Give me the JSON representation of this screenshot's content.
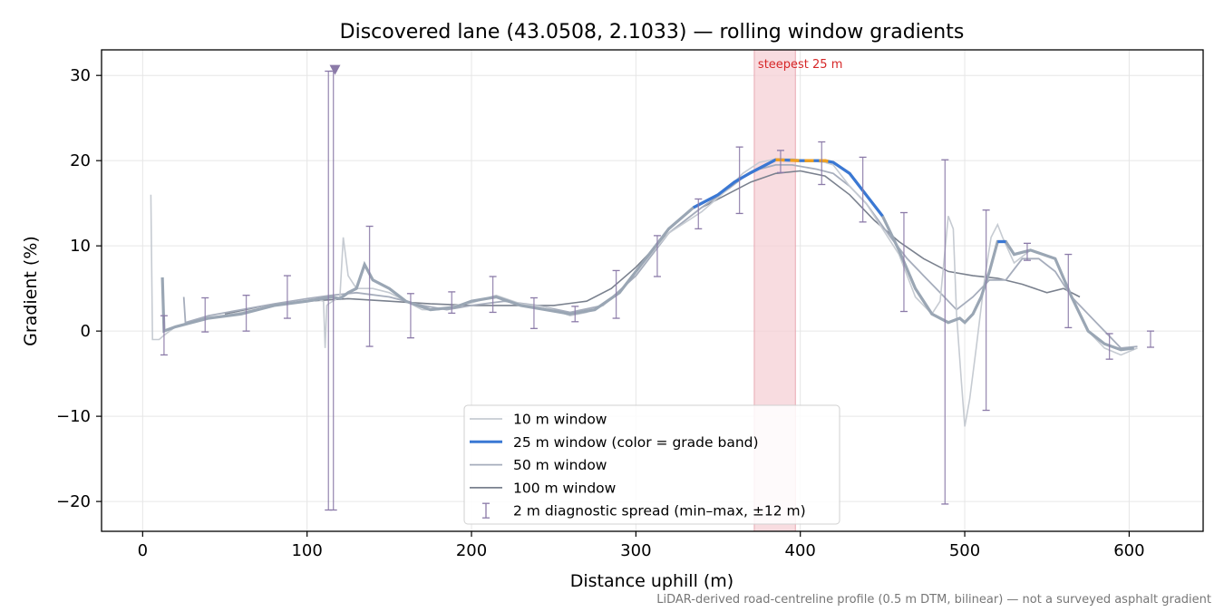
{
  "chart_data": {
    "type": "line",
    "title": "Discovered lane (43.0508, 2.1033) — rolling window gradients",
    "xlabel": "Distance uphill (m)",
    "ylabel": "Gradient (%)",
    "xlim": [
      -25,
      645
    ],
    "ylim": [
      -23.5,
      33
    ],
    "xticks": [
      0,
      100,
      200,
      300,
      400,
      500,
      600
    ],
    "yticks": [
      -20,
      -10,
      0,
      10,
      20,
      30
    ],
    "ytick_labels": [
      "−20",
      "−10",
      "0",
      "10",
      "20",
      "30"
    ],
    "grid": true,
    "legend_position": "bottom-center",
    "footnote": "LiDAR-derived road-centreline profile (0.5 m DTM, bilinear) — not a surveyed asphalt gradient",
    "steepest_segment": {
      "label": "steepest 25 m",
      "x_start": 372,
      "x_end": 397,
      "color": "#f5d0d5",
      "label_color": "#d62728"
    },
    "marker": {
      "x": 117,
      "y": 30.7,
      "shape": "triangle-down",
      "color": "#8b7aa8"
    },
    "series": [
      {
        "name": "10 m window",
        "color": "#c6cbd2",
        "points": [
          [
            5,
            16
          ],
          [
            6,
            -1
          ],
          [
            10,
            -1
          ],
          [
            13,
            -0.5
          ],
          [
            20,
            0.5
          ],
          [
            40,
            1.5
          ],
          [
            60,
            2.2
          ],
          [
            80,
            3
          ],
          [
            100,
            3.6
          ],
          [
            105,
            3.8
          ],
          [
            110,
            3.5
          ],
          [
            111,
            -2
          ],
          [
            112,
            3
          ],
          [
            113,
            3.2
          ],
          [
            120,
            4
          ],
          [
            122,
            11
          ],
          [
            125,
            6.5
          ],
          [
            130,
            5
          ],
          [
            140,
            5
          ],
          [
            150,
            4.5
          ],
          [
            160,
            3.5
          ],
          [
            170,
            2.5
          ],
          [
            180,
            2.5
          ],
          [
            190,
            3
          ],
          [
            200,
            3.3
          ],
          [
            215,
            4.2
          ],
          [
            230,
            3.2
          ],
          [
            245,
            2.8
          ],
          [
            260,
            1.8
          ],
          [
            270,
            2.2
          ],
          [
            280,
            3
          ],
          [
            290,
            4.5
          ],
          [
            300,
            7
          ],
          [
            320,
            11.5
          ],
          [
            340,
            14
          ],
          [
            355,
            16.5
          ],
          [
            365,
            18.5
          ],
          [
            375,
            19.8
          ],
          [
            385,
            20.2
          ],
          [
            395,
            20.2
          ],
          [
            405,
            20
          ],
          [
            415,
            19.8
          ],
          [
            420,
            19.5
          ],
          [
            430,
            17
          ],
          [
            440,
            15
          ],
          [
            450,
            12
          ],
          [
            460,
            9
          ],
          [
            470,
            4
          ],
          [
            480,
            2
          ],
          [
            485,
            3.5
          ],
          [
            490,
            13.5
          ],
          [
            493,
            12
          ],
          [
            495,
            2
          ],
          [
            498,
            -6
          ],
          [
            500,
            -11.2
          ],
          [
            503,
            -8
          ],
          [
            507,
            -2
          ],
          [
            512,
            6
          ],
          [
            516,
            11
          ],
          [
            520,
            12.5
          ],
          [
            523,
            11
          ],
          [
            530,
            8
          ],
          [
            540,
            9.5
          ],
          [
            555,
            8.5
          ],
          [
            565,
            4
          ],
          [
            575,
            0
          ],
          [
            585,
            -2
          ],
          [
            595,
            -2.8
          ],
          [
            605,
            -2
          ]
        ]
      },
      {
        "name": "25 m window (color = grade band)",
        "color": "#3a78d4",
        "highlight_color": "#f0a020",
        "highlight_x": [
          382,
          420
        ],
        "points": [
          [
            12,
            6.3
          ],
          [
            13,
            0
          ],
          [
            20,
            0.5
          ],
          [
            30,
            1
          ],
          [
            40,
            1.5
          ],
          [
            60,
            2
          ],
          [
            80,
            3
          ],
          [
            100,
            3.5
          ],
          [
            115,
            4
          ],
          [
            120,
            3.8
          ],
          [
            125,
            4.5
          ],
          [
            130,
            5
          ],
          [
            135,
            7.8
          ],
          [
            140,
            6
          ],
          [
            150,
            5
          ],
          [
            160,
            3.5
          ],
          [
            175,
            2.5
          ],
          [
            190,
            2.8
          ],
          [
            200,
            3.5
          ],
          [
            215,
            4
          ],
          [
            230,
            3
          ],
          [
            245,
            2.5
          ],
          [
            260,
            2
          ],
          [
            275,
            2.5
          ],
          [
            290,
            4.5
          ],
          [
            300,
            7
          ],
          [
            320,
            12
          ],
          [
            335,
            14.5
          ],
          [
            350,
            16
          ],
          [
            360,
            17.5
          ],
          [
            370,
            18.6
          ],
          [
            378,
            19.4
          ],
          [
            385,
            20.1
          ],
          [
            400,
            20
          ],
          [
            415,
            20
          ],
          [
            420,
            19.8
          ],
          [
            430,
            18.5
          ],
          [
            440,
            16
          ],
          [
            450,
            13.5
          ],
          [
            460,
            9.5
          ],
          [
            470,
            5
          ],
          [
            480,
            2
          ],
          [
            490,
            1
          ],
          [
            497,
            1.5
          ],
          [
            500,
            1
          ],
          [
            505,
            2
          ],
          [
            510,
            4
          ],
          [
            515,
            7
          ],
          [
            520,
            10.5
          ],
          [
            525,
            10.5
          ],
          [
            530,
            9
          ],
          [
            540,
            9.5
          ],
          [
            555,
            8.5
          ],
          [
            565,
            4
          ],
          [
            575,
            0
          ],
          [
            585,
            -1.5
          ],
          [
            595,
            -2.2
          ],
          [
            603,
            -2
          ]
        ]
      },
      {
        "name": "50 m window",
        "color": "#a6adbc",
        "points": [
          [
            25,
            4
          ],
          [
            26,
            1
          ],
          [
            40,
            1.8
          ],
          [
            60,
            2.5
          ],
          [
            80,
            3.2
          ],
          [
            100,
            3.8
          ],
          [
            115,
            4.2
          ],
          [
            130,
            4.5
          ],
          [
            150,
            4
          ],
          [
            170,
            3
          ],
          [
            185,
            2.5
          ],
          [
            200,
            3
          ],
          [
            220,
            3.5
          ],
          [
            240,
            3
          ],
          [
            260,
            2.2
          ],
          [
            280,
            3
          ],
          [
            300,
            6.5
          ],
          [
            320,
            11.5
          ],
          [
            340,
            14.5
          ],
          [
            355,
            16.5
          ],
          [
            365,
            18
          ],
          [
            375,
            19
          ],
          [
            385,
            19.5
          ],
          [
            395,
            19.5
          ],
          [
            410,
            19
          ],
          [
            420,
            18.5
          ],
          [
            430,
            17
          ],
          [
            440,
            15
          ],
          [
            455,
            11
          ],
          [
            465,
            8.5
          ],
          [
            475,
            6.5
          ],
          [
            485,
            4.5
          ],
          [
            495,
            2.5
          ],
          [
            505,
            4
          ],
          [
            515,
            6
          ],
          [
            525,
            6
          ],
          [
            535,
            8.5
          ],
          [
            545,
            8.5
          ],
          [
            555,
            7
          ],
          [
            565,
            4
          ],
          [
            580,
            1
          ],
          [
            595,
            -2
          ],
          [
            605,
            -1.8
          ]
        ]
      },
      {
        "name": "100 m window",
        "color": "#7a818e",
        "points": [
          [
            50,
            2
          ],
          [
            75,
            3
          ],
          [
            100,
            3.5
          ],
          [
            125,
            3.8
          ],
          [
            150,
            3.5
          ],
          [
            175,
            3.2
          ],
          [
            200,
            3
          ],
          [
            225,
            3
          ],
          [
            250,
            3
          ],
          [
            270,
            3.5
          ],
          [
            285,
            5
          ],
          [
            300,
            7.5
          ],
          [
            320,
            11.5
          ],
          [
            340,
            14.5
          ],
          [
            355,
            16
          ],
          [
            370,
            17.5
          ],
          [
            385,
            18.5
          ],
          [
            400,
            18.8
          ],
          [
            415,
            18.2
          ],
          [
            430,
            16
          ],
          [
            445,
            13
          ],
          [
            460,
            10.5
          ],
          [
            475,
            8.5
          ],
          [
            490,
            7
          ],
          [
            505,
            6.5
          ],
          [
            520,
            6.2
          ],
          [
            535,
            5.5
          ],
          [
            550,
            4.5
          ],
          [
            560,
            5
          ],
          [
            570,
            4
          ]
        ]
      }
    ],
    "error_bars": {
      "name": "2 m diagnostic spread (min–max, ±12 m)",
      "color": "#8b7aa8",
      "items": [
        [
          13,
          -2.8,
          1.8
        ],
        [
          38,
          -0.1,
          3.9
        ],
        [
          63,
          0,
          4.2
        ],
        [
          88,
          1.5,
          6.5
        ],
        [
          113,
          -21,
          30.5
        ],
        [
          116,
          -21,
          30.5
        ],
        [
          138,
          -1.8,
          12.3
        ],
        [
          163,
          -0.8,
          4.4
        ],
        [
          188,
          2.1,
          4.6
        ],
        [
          213,
          2.2,
          6.4
        ],
        [
          238,
          0.3,
          3.9
        ],
        [
          263,
          1.1,
          2.9
        ],
        [
          288,
          1.5,
          7.1
        ],
        [
          313,
          6.4,
          11.2
        ],
        [
          338,
          12,
          15.5
        ],
        [
          363,
          13.8,
          21.6
        ],
        [
          388,
          18.6,
          21.2
        ],
        [
          413,
          17.2,
          22.2
        ],
        [
          438,
          12.8,
          20.4
        ],
        [
          463,
          2.3,
          13.9
        ],
        [
          488,
          -20.3,
          20.1
        ],
        [
          513,
          -9.3,
          14.2
        ],
        [
          538,
          8.3,
          10.3
        ],
        [
          563,
          0.4,
          9
        ],
        [
          588,
          -3.3,
          -0.3
        ],
        [
          613,
          -1.9,
          0
        ]
      ]
    }
  }
}
